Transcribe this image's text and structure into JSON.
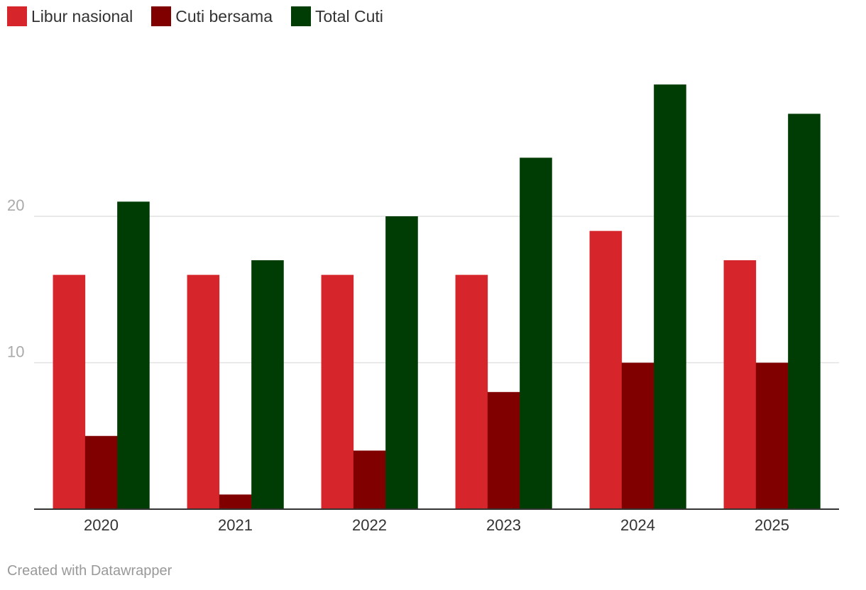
{
  "chart_data": {
    "type": "bar",
    "categories": [
      "2020",
      "2021",
      "2022",
      "2023",
      "2024",
      "2025"
    ],
    "series": [
      {
        "name": "Libur nasional",
        "color": "#d7262b",
        "values": [
          16,
          16,
          16,
          16,
          19,
          17
        ]
      },
      {
        "name": "Cuti bersama",
        "color": "#800000",
        "values": [
          5,
          1,
          4,
          8,
          10,
          10
        ]
      },
      {
        "name": "Total Cuti",
        "color": "#003d04",
        "values": [
          21,
          17,
          20,
          24,
          29,
          27
        ]
      }
    ],
    "yticks": [
      "10",
      "20"
    ],
    "ylim": [
      0,
      30
    ],
    "grid": true,
    "legend_position": "top-left"
  },
  "footer": {
    "credit": "Created with Datawrapper"
  }
}
